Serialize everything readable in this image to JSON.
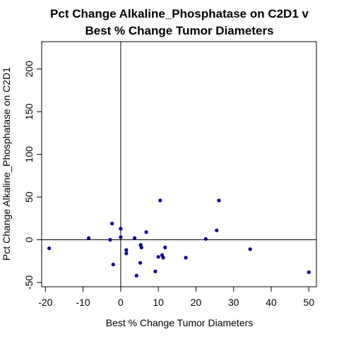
{
  "chart_data": {
    "type": "scatter",
    "title": [
      "Pct Change Alkaline_Phosphatase on C2D1 v",
      "Best % Change Tumor Diameters"
    ],
    "xlabel": "Best % Change Tumor Diameters",
    "ylabel": "Pct Change Alkaline_Phosphatase on C2D1",
    "xlim": [
      -21,
      52
    ],
    "ylim": [
      -55,
      232
    ],
    "xticks": [
      -20,
      -10,
      0,
      10,
      20,
      30,
      40,
      50
    ],
    "yticks": [
      -50,
      0,
      50,
      100,
      150,
      200
    ],
    "reference_lines": {
      "x": 0,
      "y": 0
    },
    "grid": false,
    "marker_color": "#00008b",
    "points": [
      {
        "x": -19,
        "y": -10
      },
      {
        "x": -8.5,
        "y": 2
      },
      {
        "x": -2.8,
        "y": 0
      },
      {
        "x": -2.3,
        "y": 19
      },
      {
        "x": -2,
        "y": -29
      },
      {
        "x": 0,
        "y": 13
      },
      {
        "x": 0,
        "y": 3
      },
      {
        "x": 1.5,
        "y": -12
      },
      {
        "x": 1.5,
        "y": -16
      },
      {
        "x": 3.7,
        "y": 2
      },
      {
        "x": 4.2,
        "y": -42
      },
      {
        "x": 5.2,
        "y": -27
      },
      {
        "x": 5.3,
        "y": -6
      },
      {
        "x": 5.5,
        "y": -9
      },
      {
        "x": 6.8,
        "y": 9
      },
      {
        "x": 9.2,
        "y": -37
      },
      {
        "x": 10,
        "y": -20
      },
      {
        "x": 10.5,
        "y": 46
      },
      {
        "x": 11,
        "y": -18
      },
      {
        "x": 11.3,
        "y": -21
      },
      {
        "x": 11.8,
        "y": -9
      },
      {
        "x": 17.3,
        "y": -21
      },
      {
        "x": 22.6,
        "y": 1
      },
      {
        "x": 25.5,
        "y": 11
      },
      {
        "x": 26.1,
        "y": 46
      },
      {
        "x": 34.4,
        "y": -11
      },
      {
        "x": 50,
        "y": -38
      }
    ]
  }
}
